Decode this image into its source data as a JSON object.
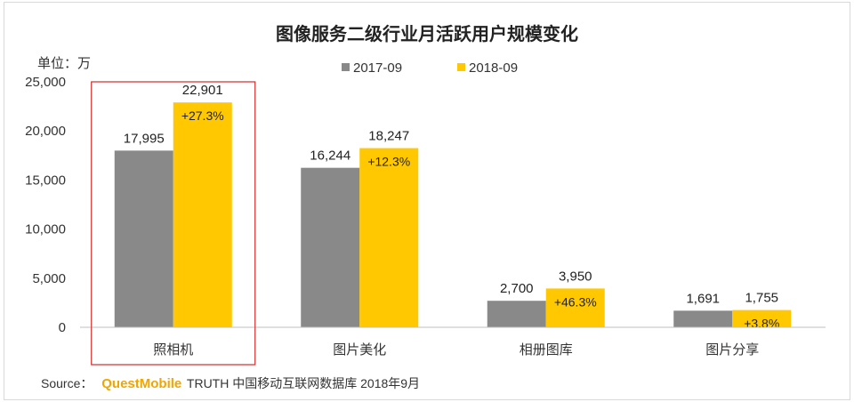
{
  "chart_data": {
    "type": "bar",
    "title": "图像服务二级行业月活跃用户规模变化",
    "unit_label": "单位：万",
    "categories": [
      "照相机",
      "图片美化",
      "相册图库",
      "图片分享"
    ],
    "series": [
      {
        "name": "2017-09",
        "values": [
          17995,
          16244,
          2700,
          1691
        ],
        "labels": [
          "17,995",
          "16,244",
          "2,700",
          "1,691"
        ],
        "color": "#898989"
      },
      {
        "name": "2018-09",
        "values": [
          22901,
          18247,
          3950,
          1755
        ],
        "labels": [
          "22,901",
          "18,247",
          "3,950",
          "1,755"
        ],
        "color": "#ffc800"
      }
    ],
    "growth_labels": [
      "+27.3%",
      "+12.3%",
      "+46.3%",
      "+3.8%"
    ],
    "yticks": [
      0,
      5000,
      10000,
      15000,
      20000,
      25000
    ],
    "ytick_labels": [
      "0",
      "5,000",
      "10,000",
      "15,000",
      "20,000",
      "25,000"
    ],
    "ylim": [
      0,
      25000
    ],
    "grid": false,
    "legend_position": "top-center",
    "highlighted_category": "照相机",
    "highlight_color": "#d42a2a"
  },
  "source": {
    "prefix": "Source：",
    "brand": "QuestMobile",
    "rest": "TRUTH 中国移动互联网数据库 2018年9月"
  }
}
